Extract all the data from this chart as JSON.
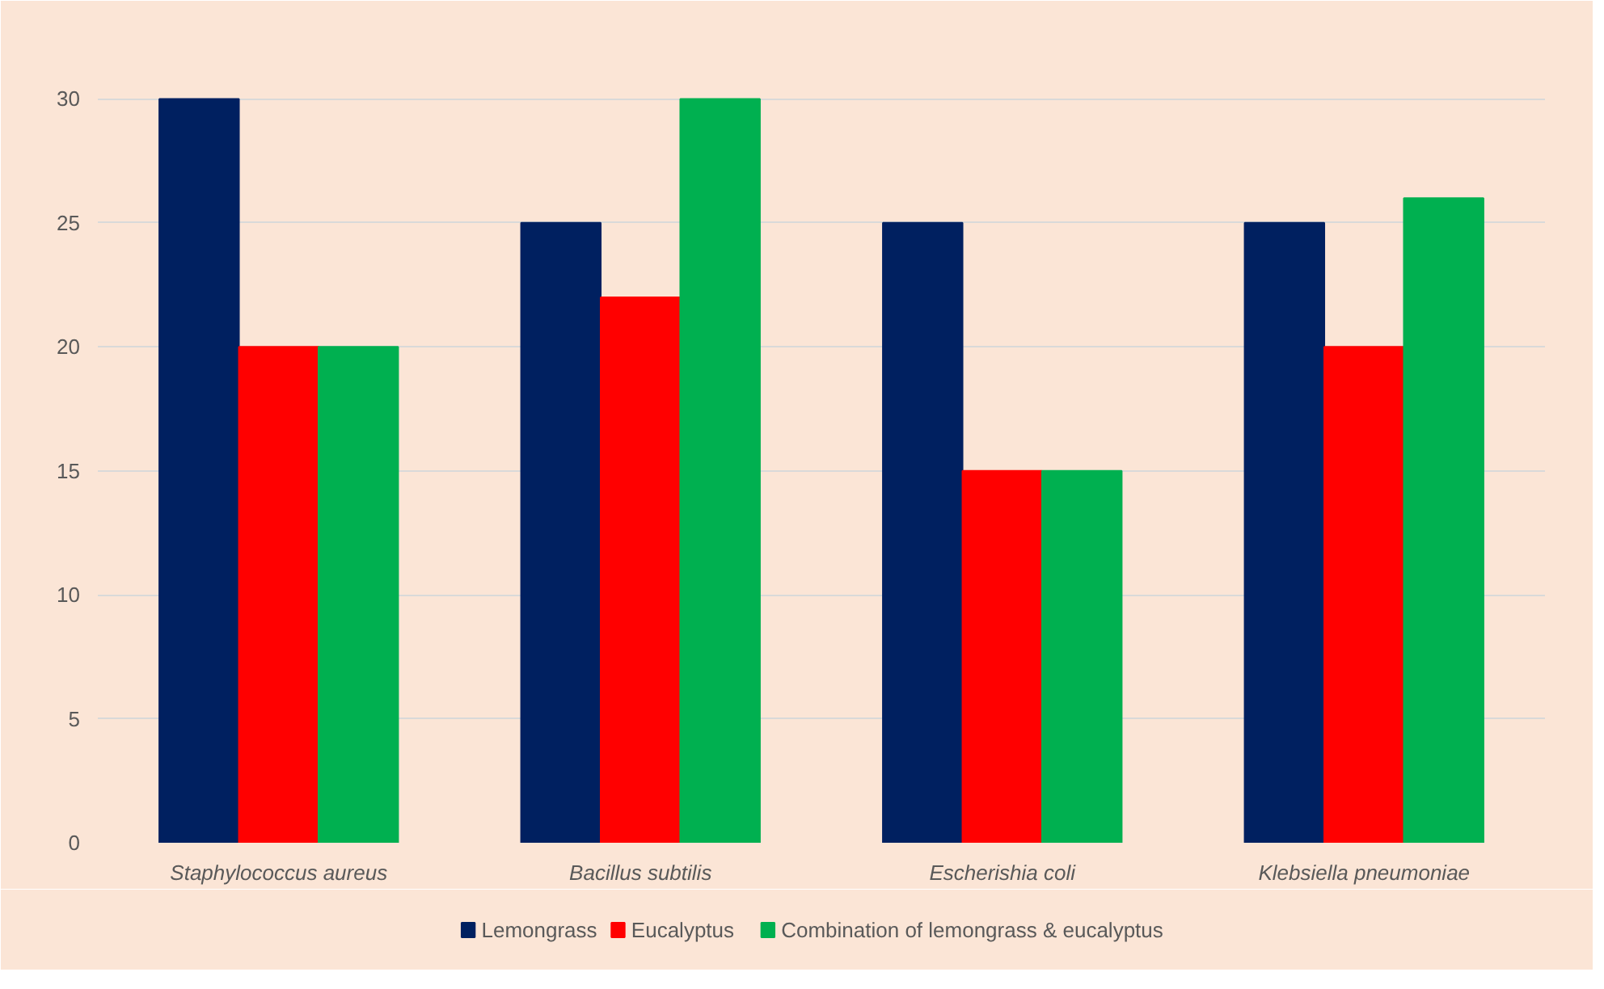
{
  "chart_data": {
    "type": "bar",
    "categories": [
      "Staphylococcus aureus",
      "Bacillus subtilis",
      "Escherishia coli",
      "Klebsiella pneumoniae"
    ],
    "series": [
      {
        "name": "Lemongrass",
        "color": "#002060",
        "values": [
          30,
          25,
          25,
          25
        ]
      },
      {
        "name": "Eucalyptus",
        "color": "#ff0000",
        "values": [
          20,
          22,
          15,
          20
        ]
      },
      {
        "name": "Combination of lemongrass & eucalyptus",
        "color": "#00b050",
        "values": [
          20,
          30,
          15,
          26
        ]
      }
    ],
    "ylim": [
      0,
      32
    ],
    "yticks": [
      0,
      5,
      10,
      15,
      20,
      25,
      30
    ],
    "grid": "y",
    "legend": "bottom"
  }
}
